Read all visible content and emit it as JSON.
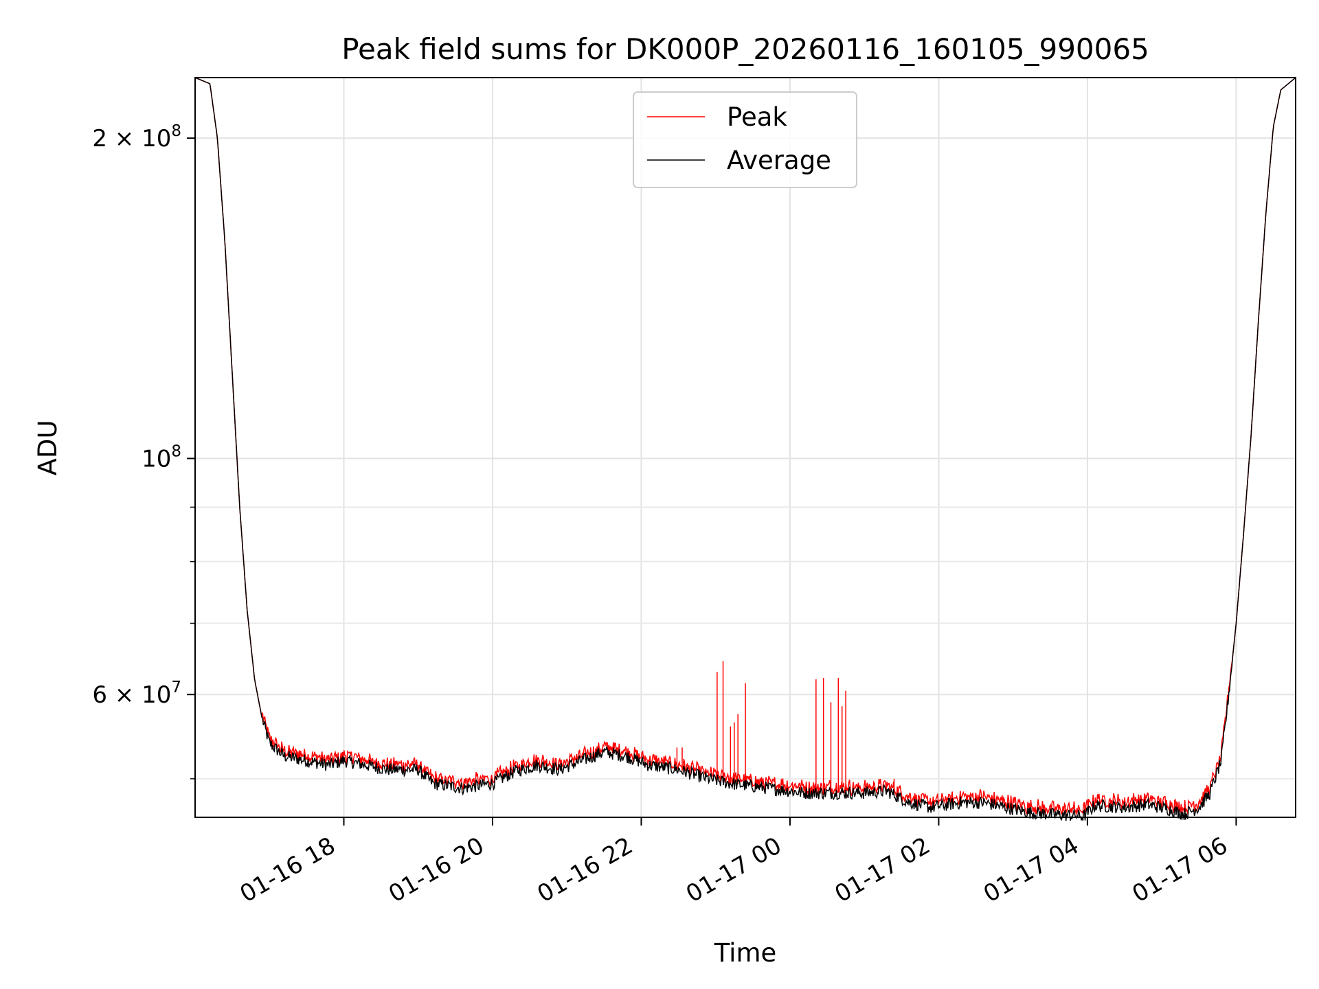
{
  "chart_data": {
    "type": "line",
    "title": "Peak field sums for DK000P_20260116_160105_990065",
    "xlabel": "Time",
    "ylabel": "ADU",
    "y_scale": "log",
    "ylim": [
      46000000,
      228000000
    ],
    "x_unit": "hours since 2026-01-16 16:00",
    "xlim": [
      16.0,
      30.8
    ],
    "grid": true,
    "legend": {
      "placement": "top-center",
      "entries": [
        "Peak",
        "Average"
      ]
    },
    "x_ticks": [
      {
        "value": 18,
        "label": "01-16 18"
      },
      {
        "value": 20,
        "label": "01-16 20"
      },
      {
        "value": 22,
        "label": "01-16 22"
      },
      {
        "value": 24,
        "label": "01-17 00"
      },
      {
        "value": 26,
        "label": "01-17 02"
      },
      {
        "value": 28,
        "label": "01-17 04"
      },
      {
        "value": 30,
        "label": "01-17 06"
      }
    ],
    "y_ticks": [
      {
        "value": 200000000,
        "base": "2 × 10",
        "exp": "8"
      },
      {
        "value": 100000000,
        "base": "10",
        "exp": "8"
      },
      {
        "value": 60000000,
        "base": "6 × 10",
        "exp": "7"
      }
    ],
    "y_minor_ticks": [
      50000000,
      70000000,
      80000000,
      90000000
    ],
    "series": [
      {
        "name": "Average",
        "color": "#000000",
        "x": [
          16.0,
          16.2,
          16.3,
          16.4,
          16.5,
          16.6,
          16.7,
          16.8,
          16.9,
          17.0,
          17.2,
          17.5,
          17.8,
          18.0,
          18.3,
          18.6,
          19.0,
          19.2,
          19.6,
          20.0,
          20.3,
          20.6,
          20.9,
          21.2,
          21.5,
          21.8,
          22.1,
          22.5,
          22.9,
          23.2,
          23.5,
          23.9,
          24.2,
          24.5,
          24.8,
          25.0,
          25.3,
          25.6,
          25.9,
          26.3,
          26.6,
          26.9,
          27.2,
          27.5,
          27.8,
          27.95,
          28.1,
          28.5,
          28.8,
          29.1,
          29.3,
          29.5,
          29.65,
          29.8,
          29.9,
          30.0,
          30.1,
          30.2,
          30.3,
          30.4,
          30.5,
          30.6,
          30.8
        ],
        "y": [
          228000000,
          225000000,
          200000000,
          160000000,
          120000000,
          90000000,
          72000000,
          62000000,
          57000000,
          54000000,
          52500000,
          52000000,
          51500000,
          52000000,
          51500000,
          51000000,
          51000000,
          49500000,
          49000000,
          49500000,
          50800000,
          51500000,
          51000000,
          52000000,
          53000000,
          52500000,
          51500000,
          51000000,
          50000000,
          49500000,
          49200000,
          48800000,
          48500000,
          48500000,
          48500000,
          48500000,
          48700000,
          47500000,
          47000000,
          47500000,
          47500000,
          47000000,
          46500000,
          46300000,
          46200000,
          46100000,
          47200000,
          47000000,
          47300000,
          46800000,
          46300000,
          47000000,
          48500000,
          52000000,
          60000000,
          70000000,
          85000000,
          105000000,
          135000000,
          170000000,
          205000000,
          222000000,
          228000000
        ]
      },
      {
        "name": "Peak",
        "color": "#ff0000",
        "offset": 600000,
        "spikes": [
          {
            "x": 22.48,
            "y": 53500000
          },
          {
            "x": 22.55,
            "y": 53500000
          },
          {
            "x": 23.02,
            "y": 63000000
          },
          {
            "x": 23.1,
            "y": 64500000
          },
          {
            "x": 23.2,
            "y": 56000000
          },
          {
            "x": 23.25,
            "y": 56500000
          },
          {
            "x": 23.3,
            "y": 57500000
          },
          {
            "x": 23.4,
            "y": 61500000
          },
          {
            "x": 24.35,
            "y": 62000000
          },
          {
            "x": 24.45,
            "y": 62200000
          },
          {
            "x": 24.55,
            "y": 59000000
          },
          {
            "x": 24.65,
            "y": 62200000
          },
          {
            "x": 24.7,
            "y": 58500000
          },
          {
            "x": 24.75,
            "y": 60500000
          },
          {
            "x": 25.4,
            "y": 50000000
          }
        ]
      }
    ]
  }
}
